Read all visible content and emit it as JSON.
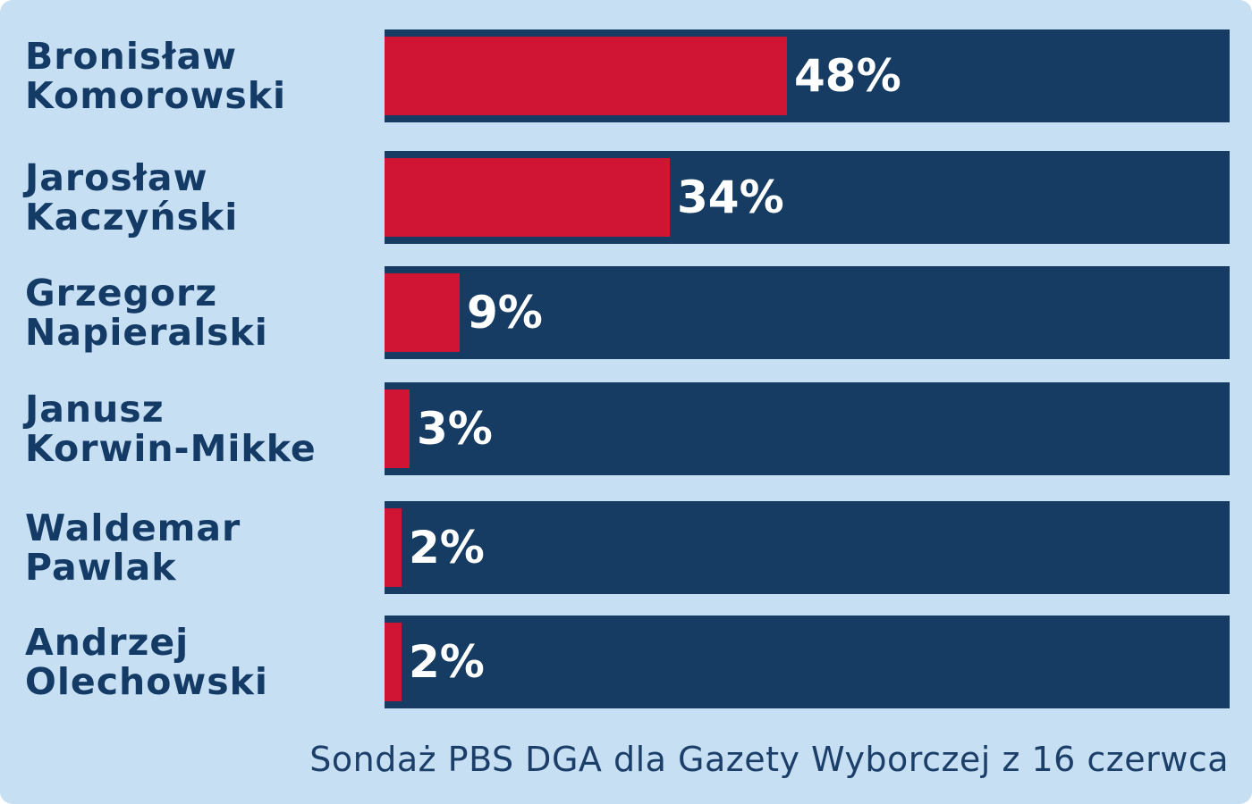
{
  "chart_data": {
    "type": "bar",
    "orientation": "horizontal",
    "categories": [
      [
        "Bronisław",
        "Komorowski"
      ],
      [
        "Jarosław",
        "Kaczyński"
      ],
      [
        "Grzegorz",
        "Napieralski"
      ],
      [
        "Janusz",
        "Korwin-Mikke"
      ],
      [
        "Waldemar",
        "Pawlak"
      ],
      [
        "Andrzej",
        "Olechowski"
      ]
    ],
    "values": [
      48,
      34,
      9,
      3,
      2,
      2
    ],
    "value_labels": [
      "48%",
      "34%",
      "9%",
      "3%",
      "2%",
      "2%"
    ],
    "xlim": [
      0,
      100
    ],
    "grid": false,
    "legend": "none"
  },
  "source": "Sondaż PBS DGA dla Gazety Wyborczej z 16 czerwca",
  "colors": {
    "background": "#c7dff3",
    "track": "#163c63",
    "bar": "#d01434",
    "label": "#143a66",
    "value_text": "#ffffff"
  }
}
